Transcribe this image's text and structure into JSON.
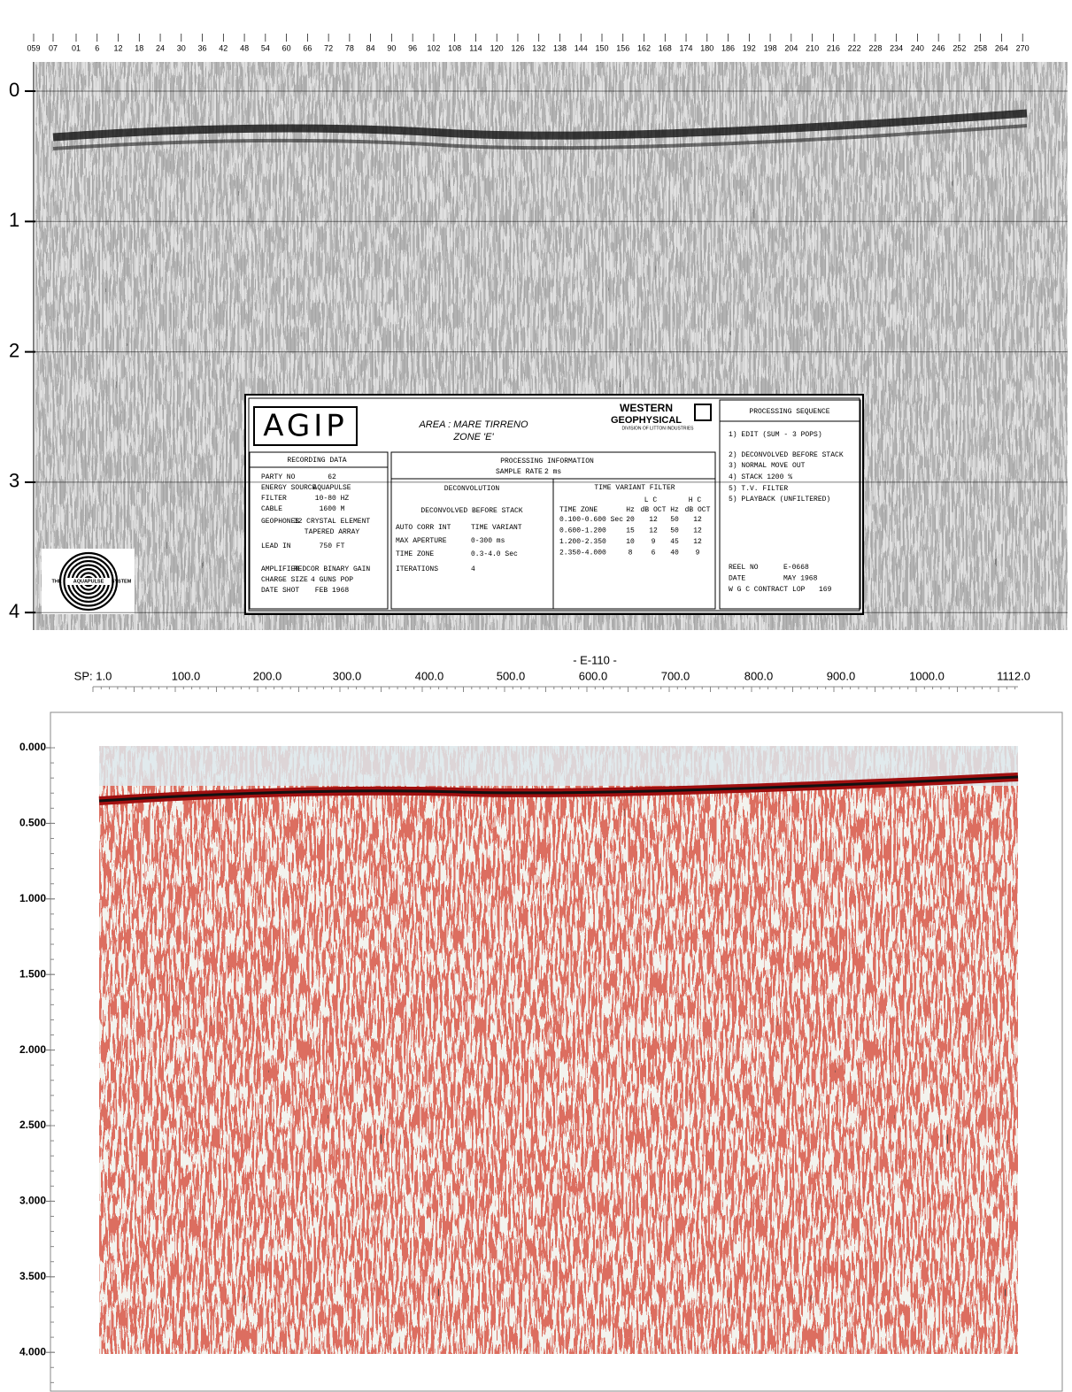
{
  "top_section": {
    "time_labels": [
      "0",
      "1",
      "2",
      "3",
      "4"
    ],
    "shot_points": [
      "059",
      "07",
      "01",
      "6",
      "12",
      "18",
      "24",
      "30",
      "36",
      "42",
      "48",
      "54",
      "60",
      "66",
      "72",
      "78",
      "84",
      "90",
      "96",
      "102",
      "108",
      "114",
      "120",
      "126",
      "132",
      "138",
      "144",
      "150",
      "156",
      "162",
      "168",
      "174",
      "180",
      "186",
      "192",
      "198",
      "204",
      "210",
      "216",
      "222",
      "228",
      "234",
      "240",
      "246",
      "252",
      "258",
      "264",
      "270"
    ],
    "label_box": {
      "company": "AGIP",
      "area": "AREA : MARE TIRRENO",
      "zone": "ZONE 'E'",
      "contractor": "WESTERN",
      "contractor_2": "GEOPHYSICAL",
      "division": "DIVISION OF LITTON INDUSTRIES",
      "recording_data": {
        "title": "RECORDING DATA",
        "rows": [
          [
            "PARTY NO",
            "62"
          ],
          [
            "ENERGY SOURCE",
            "AQUAPULSE"
          ],
          [
            "FILTER",
            "10-80 HZ"
          ],
          [
            "CABLE",
            "1600 M"
          ],
          [
            "GEOPHONES",
            "32 CRYSTAL ELEMENT"
          ],
          [
            "",
            "TAPERED ARRAY"
          ],
          [
            "LEAD IN",
            "750 FT"
          ],
          [
            "AMPLIFIER",
            "REDCOR BINARY GAIN"
          ],
          [
            "CHARGE SIZE",
            "4 GUNS POP"
          ],
          [
            "DATE SHOT",
            "FEB 1968"
          ]
        ]
      },
      "processing_information": {
        "title": "PROCESSING INFORMATION",
        "sample_rate_label": "SAMPLE RATE",
        "sample_rate": "2 ms"
      },
      "deconvolution": {
        "title": "DECONVOLUTION",
        "subtitle": "DECONVOLVED BEFORE STACK",
        "rows": [
          [
            "AUTO CORR INT",
            "TIME VARIANT"
          ],
          [
            "MAX APERTURE",
            "0-300 ms"
          ],
          [
            "TIME ZONE",
            "0.3-4.0 Sec"
          ],
          [
            "ITERATIONS",
            "4"
          ]
        ]
      },
      "time_variant_filter": {
        "title": "TIME VARIANT FILTER",
        "groups": [
          "L C",
          "H C"
        ],
        "columns": [
          "TIME ZONE",
          "Hz",
          "dB OCT",
          "Hz",
          "dB OCT"
        ],
        "rows": [
          [
            "0.100-0.600 Sec",
            "20",
            "12",
            "50",
            "12"
          ],
          [
            "0.600-1.200",
            "15",
            "12",
            "50",
            "12"
          ],
          [
            "1.200-2.350",
            "10",
            "9",
            "45",
            "12"
          ],
          [
            "2.350-4.000",
            "8",
            "6",
            "40",
            "9"
          ]
        ]
      },
      "processing_sequence": {
        "title": "PROCESSING SEQUENCE",
        "steps": [
          "1) EDIT (SUM - 3 POPS)",
          "2) DECONVOLVED BEFORE STACK",
          "3) NORMAL MOVE OUT",
          "4) STACK 1200 %",
          "5) T.V. FILTER",
          "5) PLAYBACK (UNFILTERED)"
        ],
        "reel": [
          [
            "REEL NO",
            "E-0668"
          ],
          [
            "DATE",
            "MAY 1968"
          ],
          [
            "W G C CONTRACT LOP",
            "169"
          ]
        ]
      }
    },
    "logo": [
      "THE",
      "AQUAPULSE",
      "SYSTEM"
    ]
  },
  "bottom_section": {
    "line_name": "- E-110 -",
    "sp_labels": [
      "SP: 1.0",
      "100.0",
      "200.0",
      "300.0",
      "400.0",
      "500.0",
      "600.0",
      "700.0",
      "800.0",
      "900.0",
      "1000.0",
      "1112.0"
    ],
    "time_labels": [
      "0.000",
      "0.500",
      "1.000",
      "1.500",
      "2.000",
      "2.500",
      "3.000",
      "3.500",
      "4.000"
    ]
  }
}
